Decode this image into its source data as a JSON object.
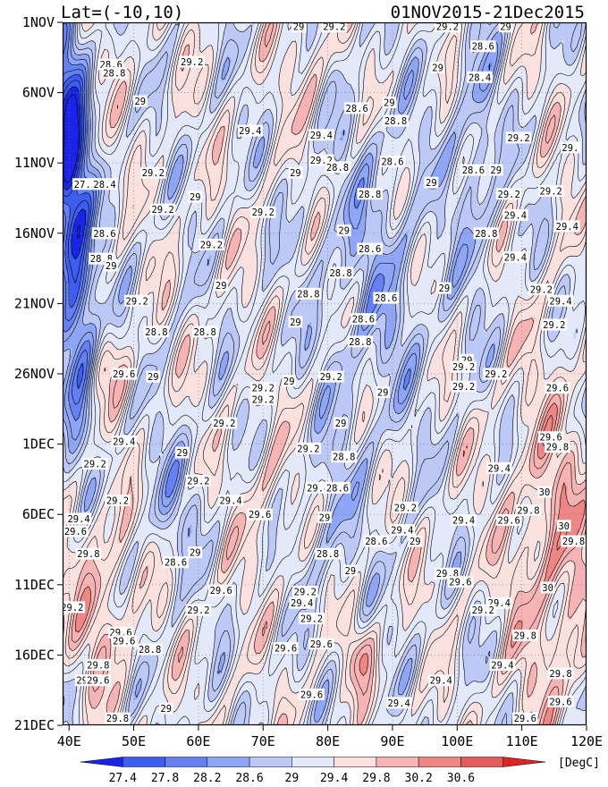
{
  "header": {
    "lat_range": "Lat=(-10,10)",
    "time_range": "01NOV2015-21Dec2015"
  },
  "chart_data": {
    "type": "heatmap",
    "title": "Lat=(-10,10)",
    "subtitle": "01NOV2015-21Dec2015",
    "x_ticks": [
      "40E",
      "50E",
      "60E",
      "70E",
      "80E",
      "90E",
      "100E",
      "110E",
      "120E"
    ],
    "x_tick_values": [
      40,
      50,
      60,
      70,
      80,
      90,
      100,
      110,
      120
    ],
    "x_range": [
      39,
      120
    ],
    "y_ticks": [
      "1NOV",
      "6NOV",
      "11NOV",
      "16NOV",
      "21NOV",
      "26NOV",
      "1DEC",
      "6DEC",
      "11DEC",
      "16DEC",
      "21DEC"
    ],
    "y_tick_values": [
      0,
      5,
      10,
      15,
      20,
      25,
      30,
      35,
      40,
      45,
      50
    ],
    "y_range": [
      0,
      50
    ],
    "y_reversed": true,
    "colorbar": {
      "levels": [
        "27.4",
        "27.8",
        "28.2",
        "28.6",
        "29",
        "29.4",
        "29.8",
        "30.2",
        "30.6"
      ],
      "unit": "[DegC]",
      "colors": [
        "#1a24e8",
        "#3d5cf0",
        "#6480f2",
        "#8ea6f5",
        "#bcc9f7",
        "#e4e8fb",
        "#fbe0e0",
        "#f5b3b3",
        "#ee8686",
        "#e45c5c",
        "#dd2424"
      ]
    },
    "field_range_degC": [
      27.2,
      30.8
    ],
    "contour_labels": [
      {
        "text": "29",
        "lon": 75.5,
        "day": 0.3
      },
      {
        "text": "29.2",
        "lon": 81.0,
        "day": 0.3
      },
      {
        "text": "29.2",
        "lon": 98.5,
        "day": 0.3
      },
      {
        "text": "29",
        "lon": 107.5,
        "day": 0.3
      },
      {
        "text": "28.6",
        "lon": 104.0,
        "day": 1.7
      },
      {
        "text": "28.6",
        "lon": 46.5,
        "day": 3.0
      },
      {
        "text": "28.8",
        "lon": 47.0,
        "day": 3.6
      },
      {
        "text": "29.2",
        "lon": 59.0,
        "day": 2.8
      },
      {
        "text": "29",
        "lon": 97.0,
        "day": 3.2
      },
      {
        "text": "28.4",
        "lon": 103.5,
        "day": 3.9
      },
      {
        "text": "29",
        "lon": 51.0,
        "day": 5.6
      },
      {
        "text": "28.6",
        "lon": 84.5,
        "day": 6.1
      },
      {
        "text": "29",
        "lon": 89.5,
        "day": 5.7
      },
      {
        "text": "28.8",
        "lon": 90.5,
        "day": 7.0
      },
      {
        "text": "29.4",
        "lon": 68.0,
        "day": 7.7
      },
      {
        "text": "29.4",
        "lon": 79.0,
        "day": 8.0
      },
      {
        "text": "29.2",
        "lon": 109.5,
        "day": 8.2
      },
      {
        "text": "29.",
        "lon": 117.5,
        "day": 8.9
      },
      {
        "text": "29.2",
        "lon": 79.0,
        "day": 9.8
      },
      {
        "text": "28.8",
        "lon": 81.5,
        "day": 10.3
      },
      {
        "text": "28.6",
        "lon": 90.0,
        "day": 9.9
      },
      {
        "text": "29",
        "lon": 75.0,
        "day": 10.7
      },
      {
        "text": "28.6",
        "lon": 102.5,
        "day": 10.5
      },
      {
        "text": "29",
        "lon": 106.0,
        "day": 10.5
      },
      {
        "text": "29.2",
        "lon": 53.0,
        "day": 10.7
      },
      {
        "text": "27.2",
        "lon": 42.5,
        "day": 11.5
      },
      {
        "text": "28.4",
        "lon": 45.5,
        "day": 11.5
      },
      {
        "text": "29",
        "lon": 96.0,
        "day": 11.4
      },
      {
        "text": "28.8",
        "lon": 86.5,
        "day": 12.2
      },
      {
        "text": "29.2",
        "lon": 108.0,
        "day": 12.2
      },
      {
        "text": "29.2",
        "lon": 114.5,
        "day": 12.0
      },
      {
        "text": "29",
        "lon": 59.5,
        "day": 12.4
      },
      {
        "text": "29.2",
        "lon": 54.5,
        "day": 13.3
      },
      {
        "text": "29.2",
        "lon": 70.0,
        "day": 13.5
      },
      {
        "text": "29.4",
        "lon": 109.0,
        "day": 13.7
      },
      {
        "text": "29.4",
        "lon": 117.0,
        "day": 14.5
      },
      {
        "text": "29",
        "lon": 82.5,
        "day": 14.8
      },
      {
        "text": "28.6",
        "lon": 45.5,
        "day": 15.0
      },
      {
        "text": "28.8",
        "lon": 104.5,
        "day": 15.0
      },
      {
        "text": "29.2",
        "lon": 62.0,
        "day": 15.8
      },
      {
        "text": "28.6",
        "lon": 86.5,
        "day": 16.1
      },
      {
        "text": "28.8",
        "lon": 45.0,
        "day": 16.8
      },
      {
        "text": "29",
        "lon": 46.5,
        "day": 17.3
      },
      {
        "text": "29.4",
        "lon": 109.0,
        "day": 16.7
      },
      {
        "text": "28.8",
        "lon": 82.0,
        "day": 17.8
      },
      {
        "text": "29",
        "lon": 63.5,
        "day": 18.7
      },
      {
        "text": "29",
        "lon": 98.0,
        "day": 18.9
      },
      {
        "text": "29.2",
        "lon": 113.0,
        "day": 19.0
      },
      {
        "text": "29.4",
        "lon": 116.0,
        "day": 19.8
      },
      {
        "text": "29.2",
        "lon": 50.5,
        "day": 19.8
      },
      {
        "text": "28.8",
        "lon": 77.0,
        "day": 19.3
      },
      {
        "text": "28.6",
        "lon": 89.0,
        "day": 19.6
      },
      {
        "text": "28.6",
        "lon": 85.5,
        "day": 21.1
      },
      {
        "text": "29",
        "lon": 75.0,
        "day": 21.3
      },
      {
        "text": "29.2",
        "lon": 115.0,
        "day": 21.5
      },
      {
        "text": "28.8",
        "lon": 53.5,
        "day": 22.0
      },
      {
        "text": "28.8",
        "lon": 61.0,
        "day": 22.0
      },
      {
        "text": "28.8",
        "lon": 85.0,
        "day": 22.7
      },
      {
        "text": "29",
        "lon": 101.5,
        "day": 24.0
      },
      {
        "text": "29.2",
        "lon": 101.0,
        "day": 24.5
      },
      {
        "text": "29.2",
        "lon": 106.0,
        "day": 25.0
      },
      {
        "text": "29.6",
        "lon": 48.5,
        "day": 25.0
      },
      {
        "text": "29",
        "lon": 53.0,
        "day": 25.2
      },
      {
        "text": "29.2",
        "lon": 80.5,
        "day": 25.2
      },
      {
        "text": "29.2",
        "lon": 70.0,
        "day": 26.0
      },
      {
        "text": "29.2",
        "lon": 70.0,
        "day": 26.8
      },
      {
        "text": "29",
        "lon": 74.0,
        "day": 25.5
      },
      {
        "text": "29.2",
        "lon": 101.0,
        "day": 25.9
      },
      {
        "text": "29",
        "lon": 88.5,
        "day": 26.3
      },
      {
        "text": "29.6",
        "lon": 115.5,
        "day": 26.0
      },
      {
        "text": "29.2",
        "lon": 64.0,
        "day": 28.5
      },
      {
        "text": "29",
        "lon": 82.0,
        "day": 28.5
      },
      {
        "text": "29.6",
        "lon": 114.5,
        "day": 29.5
      },
      {
        "text": "29.4",
        "lon": 48.5,
        "day": 29.8
      },
      {
        "text": "29.2",
        "lon": 77.0,
        "day": 30.3
      },
      {
        "text": "29.8",
        "lon": 115.5,
        "day": 30.2
      },
      {
        "text": "29",
        "lon": 57.5,
        "day": 30.6
      },
      {
        "text": "28.8",
        "lon": 82.5,
        "day": 30.9
      },
      {
        "text": "29.2",
        "lon": 44.0,
        "day": 31.4
      },
      {
        "text": "29.4",
        "lon": 106.5,
        "day": 31.7
      },
      {
        "text": "29.2",
        "lon": 60.0,
        "day": 32.6
      },
      {
        "text": "29.4",
        "lon": 78.5,
        "day": 33.1
      },
      {
        "text": "28.6",
        "lon": 81.5,
        "day": 33.1
      },
      {
        "text": "29.2",
        "lon": 47.5,
        "day": 34.0
      },
      {
        "text": "29.4",
        "lon": 65.0,
        "day": 34.0
      },
      {
        "text": "30",
        "lon": 113.5,
        "day": 33.4
      },
      {
        "text": "29.2",
        "lon": 92.0,
        "day": 34.5
      },
      {
        "text": "29.8",
        "lon": 111.0,
        "day": 34.7
      },
      {
        "text": "29.6",
        "lon": 69.5,
        "day": 35.0
      },
      {
        "text": "29",
        "lon": 79.5,
        "day": 35.2
      },
      {
        "text": "29.4",
        "lon": 41.5,
        "day": 35.3
      },
      {
        "text": "29.4",
        "lon": 101.0,
        "day": 35.4
      },
      {
        "text": "29.6",
        "lon": 108.0,
        "day": 35.4
      },
      {
        "text": "30",
        "lon": 116.5,
        "day": 35.8
      },
      {
        "text": "29.6",
        "lon": 41.0,
        "day": 36.2
      },
      {
        "text": "29.4",
        "lon": 91.5,
        "day": 36.1
      },
      {
        "text": "28.6",
        "lon": 87.5,
        "day": 36.9
      },
      {
        "text": "29",
        "lon": 93.5,
        "day": 36.9
      },
      {
        "text": "29.8",
        "lon": 118.0,
        "day": 36.9
      },
      {
        "text": "29.8",
        "lon": 43.0,
        "day": 37.8
      },
      {
        "text": "29",
        "lon": 59.5,
        "day": 37.7
      },
      {
        "text": "28.8",
        "lon": 80.0,
        "day": 37.8
      },
      {
        "text": "28.6",
        "lon": 56.5,
        "day": 38.4
      },
      {
        "text": "29",
        "lon": 83.5,
        "day": 39.0
      },
      {
        "text": "29.8",
        "lon": 98.5,
        "day": 39.2
      },
      {
        "text": "29.6",
        "lon": 100.5,
        "day": 39.8
      },
      {
        "text": "30",
        "lon": 114.0,
        "day": 40.2
      },
      {
        "text": "29.6",
        "lon": 63.5,
        "day": 40.4
      },
      {
        "text": "29.2",
        "lon": 76.5,
        "day": 40.5
      },
      {
        "text": "29.4",
        "lon": 76.0,
        "day": 41.3
      },
      {
        "text": "29.4",
        "lon": 106.5,
        "day": 41.3
      },
      {
        "text": "29.2",
        "lon": 40.5,
        "day": 41.6
      },
      {
        "text": "29.2",
        "lon": 60.0,
        "day": 41.8
      },
      {
        "text": "29.2",
        "lon": 104.0,
        "day": 41.8
      },
      {
        "text": "29.2",
        "lon": 77.5,
        "day": 42.4
      },
      {
        "text": "29.6",
        "lon": 48.0,
        "day": 43.4
      },
      {
        "text": "29.6",
        "lon": 48.5,
        "day": 44.0
      },
      {
        "text": "29.8",
        "lon": 110.5,
        "day": 43.6
      },
      {
        "text": "28.8",
        "lon": 52.5,
        "day": 44.6
      },
      {
        "text": "29.6",
        "lon": 79.0,
        "day": 44.2
      },
      {
        "text": "29.6",
        "lon": 73.5,
        "day": 44.5
      },
      {
        "text": "29.4",
        "lon": 107.0,
        "day": 45.7
      },
      {
        "text": "29.8",
        "lon": 44.5,
        "day": 45.7
      },
      {
        "text": "29.8",
        "lon": 116.0,
        "day": 46.3
      },
      {
        "text": "29",
        "lon": 42.0,
        "day": 46.8
      },
      {
        "text": "29.6",
        "lon": 44.5,
        "day": 46.8
      },
      {
        "text": "29.4",
        "lon": 97.5,
        "day": 46.8
      },
      {
        "text": "29.6",
        "lon": 77.5,
        "day": 47.8
      },
      {
        "text": "29.6",
        "lon": 116.0,
        "day": 48.3
      },
      {
        "text": "29.4",
        "lon": 91.0,
        "day": 48.4
      },
      {
        "text": "29",
        "lon": 55.0,
        "day": 48.8
      },
      {
        "text": "29.8",
        "lon": 47.5,
        "day": 49.5
      },
      {
        "text": "29.6",
        "lon": 110.5,
        "day": 49.5
      },
      {
        "text": "29.4",
        "lon": 66.0,
        "day": 50.4
      },
      {
        "text": "29.6",
        "lon": 97.5,
        "day": 50.4
      },
      {
        "text": "29.2",
        "lon": 108.5,
        "day": 50.8
      },
      {
        "text": "29.2",
        "lon": 83.0,
        "day": 51.2
      },
      {
        "text": "29",
        "lon": 53.0,
        "day": 51.5
      },
      {
        "text": "29",
        "lon": 77.0,
        "day": 51.3
      },
      {
        "text": "29.4",
        "lon": 112.0,
        "day": 52.9
      },
      {
        "text": "29.6",
        "lon": 119.5,
        "day": 52.9
      }
    ]
  }
}
